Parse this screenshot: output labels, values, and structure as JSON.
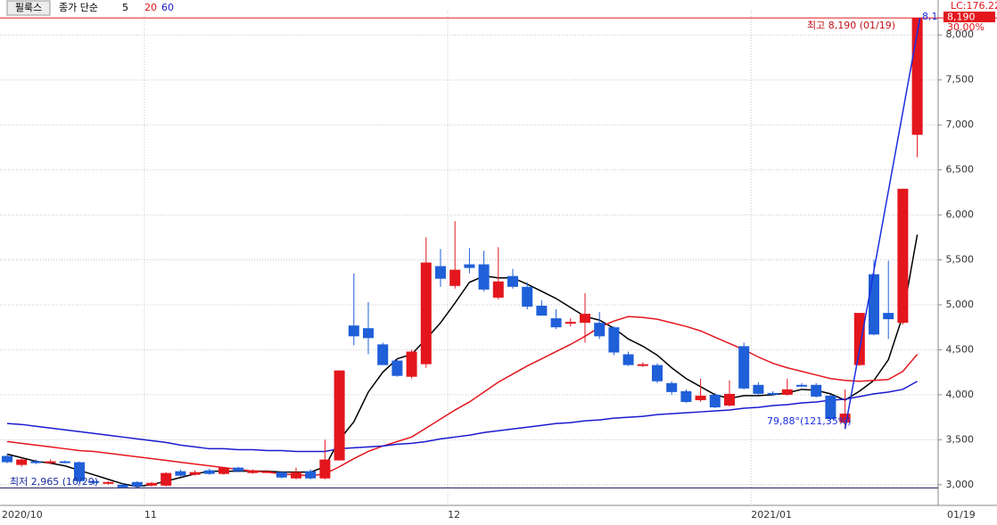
{
  "chart_data": {
    "type": "candlestick",
    "title": "필룩스",
    "legend_prefix": "종가 단순",
    "categories": [
      "2020/10",
      null,
      null,
      null,
      null,
      null,
      null,
      null,
      null,
      null,
      "11",
      null,
      null,
      null,
      null,
      null,
      null,
      null,
      null,
      null,
      null,
      null,
      null,
      null,
      null,
      null,
      null,
      null,
      null,
      null,
      null,
      "12",
      null,
      null,
      null,
      null,
      null,
      null,
      null,
      null,
      null,
      null,
      null,
      null,
      null,
      null,
      null,
      null,
      null,
      null,
      null,
      null,
      "2021/01",
      null,
      null,
      null,
      null,
      null,
      null,
      null,
      null,
      null,
      null,
      null
    ],
    "open": [
      3320,
      3220,
      3260,
      3240,
      3260,
      3250,
      3040,
      3010,
      3000,
      3030,
      2990,
      2990,
      3150,
      3110,
      3160,
      3120,
      3190,
      3130,
      3140,
      3140,
      3070,
      3150,
      3070,
      3270,
      4770,
      4740,
      4560,
      4380,
      4200,
      4340,
      5430,
      5210,
      5450,
      5450,
      5080,
      5320,
      5200,
      4990,
      4850,
      4790,
      4800,
      4800,
      4750,
      4450,
      4320,
      4330,
      4130,
      4040,
      3940,
      4000,
      3880,
      4540,
      4110,
      4020,
      4000,
      4110,
      4110,
      3990,
      3690,
      4330,
      5340,
      4910,
      4800,
      6890
    ],
    "high": [
      3340,
      3300,
      3280,
      3280,
      3270,
      3260,
      3050,
      3040,
      3020,
      3040,
      3030,
      3140,
      3170,
      3160,
      3180,
      3200,
      3200,
      3170,
      3160,
      3150,
      3190,
      3170,
      3500,
      4270,
      5350,
      5030,
      4580,
      4400,
      4500,
      5750,
      5620,
      5930,
      5630,
      5600,
      5640,
      5400,
      5250,
      5050,
      4950,
      4850,
      5130,
      4920,
      4760,
      4480,
      4360,
      4350,
      4150,
      4060,
      4180,
      4020,
      4160,
      4580,
      4140,
      4040,
      4180,
      4130,
      4130,
      4000,
      4060,
      4910,
      5500,
      5490,
      6290,
      8190
    ],
    "low": [
      3240,
      3200,
      3230,
      3230,
      3240,
      3020,
      3000,
      3000,
      2965,
      2970,
      2980,
      2980,
      3090,
      3100,
      3110,
      3110,
      3140,
      3120,
      3130,
      3070,
      3060,
      3060,
      3060,
      3270,
      4550,
      4450,
      4330,
      4200,
      4180,
      4300,
      5200,
      5180,
      5350,
      5150,
      5060,
      5180,
      4950,
      4880,
      4730,
      4760,
      4580,
      4620,
      4440,
      4320,
      4310,
      4130,
      4000,
      3910,
      3920,
      3850,
      3870,
      4060,
      4000,
      3990,
      3990,
      4090,
      3970,
      3720,
      3620,
      4320,
      4660,
      4620,
      4780,
      6640
    ],
    "close": [
      3250,
      3280,
      3240,
      3260,
      3250,
      3040,
      3020,
      3030,
      2970,
      2980,
      3020,
      3130,
      3100,
      3140,
      3120,
      3190,
      3150,
      3160,
      3150,
      3080,
      3140,
      3070,
      3280,
      4270,
      4650,
      4630,
      4330,
      4210,
      4480,
      5470,
      5290,
      5390,
      5410,
      5170,
      5260,
      5200,
      4980,
      4880,
      4750,
      4810,
      4900,
      4650,
      4470,
      4330,
      4340,
      4150,
      4030,
      3920,
      3990,
      3860,
      4010,
      4070,
      4010,
      4000,
      4060,
      4100,
      3980,
      3730,
      3790,
      4910,
      4670,
      4840,
      6290,
      8190
    ],
    "up_color": "#e3161d",
    "down_color": "#1f5fd8",
    "series": [
      {
        "name": "5",
        "color": "#000000",
        "values": [
          3340,
          3300,
          3260,
          3240,
          3210,
          3160,
          3110,
          3060,
          3010,
          2980,
          3000,
          3040,
          3080,
          3120,
          3150,
          3150,
          3150,
          3150,
          3150,
          3140,
          3140,
          3140,
          3200,
          3500,
          3700,
          4030,
          4250,
          4400,
          4450,
          4620,
          4800,
          5020,
          5250,
          5320,
          5300,
          5300,
          5230,
          5150,
          5070,
          4970,
          4870,
          4830,
          4740,
          4620,
          4540,
          4440,
          4300,
          4180,
          4090,
          4000,
          3960,
          3990,
          3990,
          4000,
          4020,
          4060,
          4050,
          4010,
          3940,
          4040,
          4160,
          4390,
          4880,
          5780
        ]
      },
      {
        "name": "20",
        "color": "#e3161d",
        "values": [
          3480,
          3460,
          3440,
          3420,
          3400,
          3380,
          3370,
          3350,
          3330,
          3310,
          3290,
          3270,
          3250,
          3230,
          3210,
          3190,
          3170,
          3150,
          3140,
          3120,
          3110,
          3100,
          3120,
          3200,
          3290,
          3370,
          3430,
          3480,
          3530,
          3630,
          3730,
          3830,
          3920,
          4030,
          4140,
          4230,
          4320,
          4400,
          4480,
          4560,
          4650,
          4750,
          4820,
          4870,
          4860,
          4840,
          4800,
          4760,
          4710,
          4640,
          4570,
          4500,
          4420,
          4350,
          4300,
          4260,
          4220,
          4180,
          4160,
          4150,
          4160,
          4170,
          4260,
          4450
        ]
      },
      {
        "name": "60",
        "color": "#1a1ad0",
        "values": [
          3680,
          3670,
          3650,
          3630,
          3610,
          3590,
          3570,
          3550,
          3530,
          3510,
          3490,
          3470,
          3440,
          3420,
          3400,
          3400,
          3390,
          3390,
          3380,
          3380,
          3370,
          3370,
          3370,
          3400,
          3410,
          3420,
          3430,
          3450,
          3460,
          3480,
          3510,
          3530,
          3550,
          3580,
          3600,
          3620,
          3640,
          3660,
          3680,
          3690,
          3710,
          3720,
          3740,
          3750,
          3760,
          3780,
          3790,
          3800,
          3810,
          3820,
          3830,
          3850,
          3860,
          3880,
          3890,
          3910,
          3920,
          3940,
          3950,
          3980,
          4010,
          4030,
          4060,
          4150
        ]
      }
    ],
    "ylim": [
      2780,
      8270
    ],
    "yticks": [
      {
        "value": 3000,
        "label": "3,000"
      },
      {
        "value": 3500,
        "label": "3,500"
      },
      {
        "value": 4000,
        "label": "4,000"
      },
      {
        "value": 4500,
        "label": "4,500"
      },
      {
        "value": 5000,
        "label": "5,000"
      },
      {
        "value": 5500,
        "label": "5,500"
      },
      {
        "value": 6000,
        "label": "6,000"
      },
      {
        "value": 6500,
        "label": "6,500"
      },
      {
        "value": 7000,
        "label": "7,000"
      },
      {
        "value": 7500,
        "label": "7,500"
      },
      {
        "value": 8000,
        "label": "8,000"
      }
    ],
    "grid": true,
    "max_label": "최고 8,190 (01/19)",
    "min_label": "최저 2,965 (10/29)",
    "trend_label": "79,88°(121,35%)",
    "trend_tip": "8,1",
    "lc_label": "LC:176.22",
    "last_price_label": "8,190",
    "change_label": "30.00%",
    "last_date": "01/19"
  }
}
